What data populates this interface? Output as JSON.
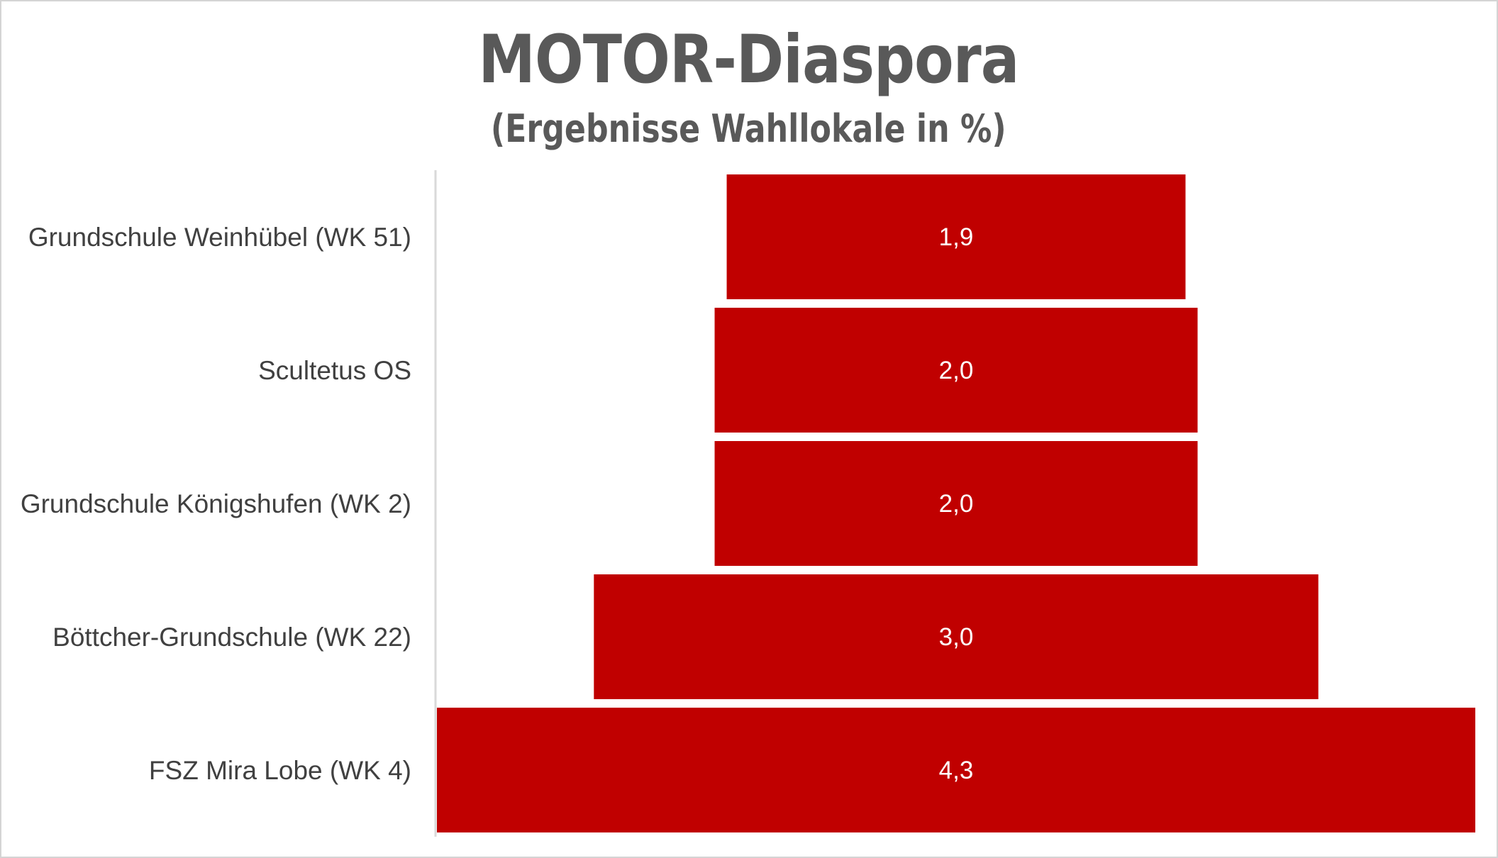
{
  "chart_data": {
    "type": "bar",
    "orientation": "horizontal",
    "layout": "centered-funnel",
    "title": "MOTOR-Diaspora",
    "subtitle": "(Ergebnisse Wahllokale in %)",
    "categories": [
      "Grundschule Weinhübel (WK 51)",
      "Scultetus OS",
      "Grundschule Königshufen (WK 2)",
      "Böttcher-Grundschule (WK 22)",
      "FSZ Mira Lobe (WK 4)"
    ],
    "values": [
      1.9,
      2.0,
      2.0,
      3.0,
      4.3
    ],
    "value_labels": [
      "1,9",
      "2,0",
      "2,0",
      "3,0",
      "4,3"
    ],
    "bar_color": "#C00000",
    "grid": false,
    "legend": "none"
  }
}
